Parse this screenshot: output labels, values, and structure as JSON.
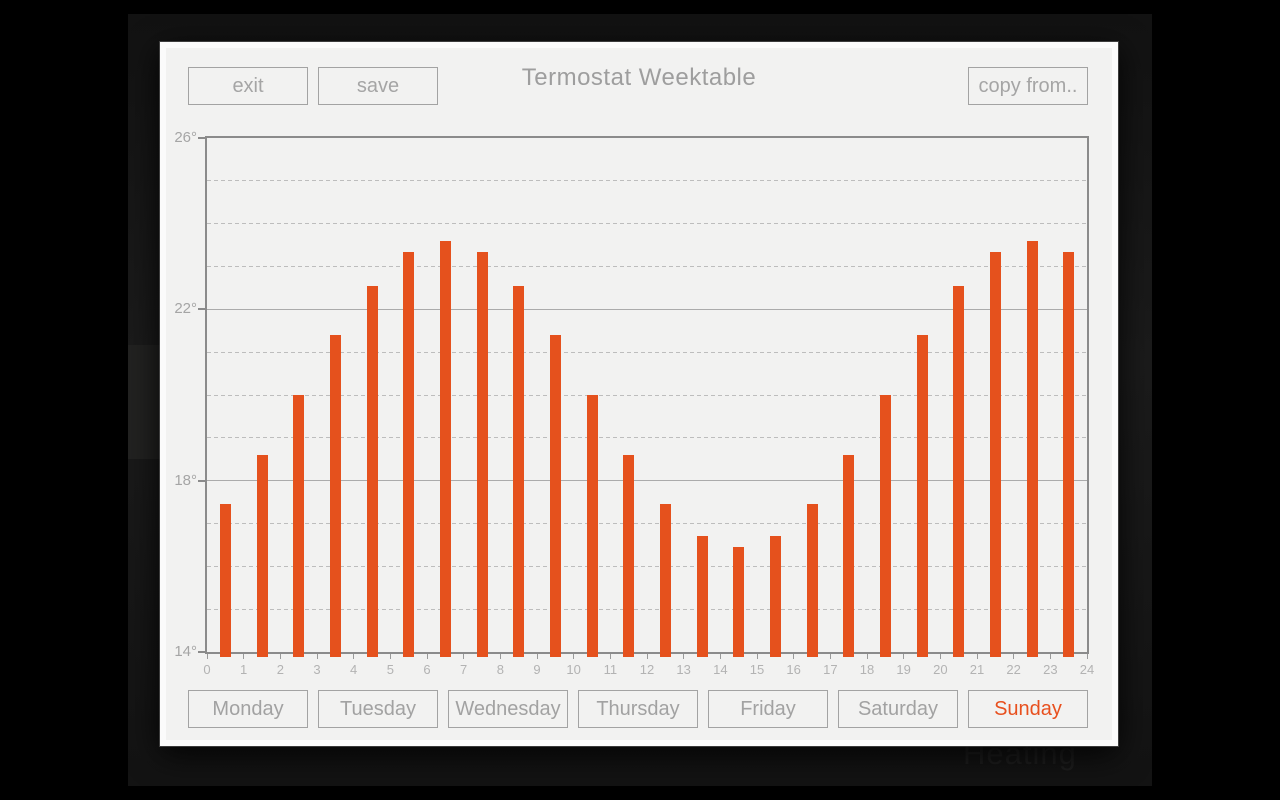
{
  "background": {
    "app_label": "Heating"
  },
  "header": {
    "exit_label": "exit",
    "save_label": "save",
    "title": "Termostat Weektable",
    "copy_from_label": "copy from.."
  },
  "days": {
    "items": [
      {
        "label": "Monday",
        "active": false
      },
      {
        "label": "Tuesday",
        "active": false
      },
      {
        "label": "Wednesday",
        "active": false
      },
      {
        "label": "Thursday",
        "active": false
      },
      {
        "label": "Friday",
        "active": false
      },
      {
        "label": "Saturday",
        "active": false
      },
      {
        "label": "Sunday",
        "active": true
      }
    ]
  },
  "chart_data": {
    "type": "bar",
    "title": "",
    "xlabel": "",
    "ylabel": "",
    "hours": [
      0,
      1,
      2,
      3,
      4,
      5,
      6,
      7,
      8,
      9,
      10,
      11,
      12,
      13,
      14,
      15,
      16,
      17,
      18,
      19,
      20,
      21,
      22,
      23
    ],
    "values": [
      17.45,
      18.6,
      20.0,
      21.4,
      22.55,
      23.35,
      23.6,
      23.35,
      22.55,
      21.4,
      20.0,
      18.6,
      17.45,
      16.7,
      16.45,
      16.7,
      17.45,
      18.6,
      20.0,
      21.4,
      22.55,
      23.35,
      23.6,
      23.35
    ],
    "ylim": [
      14,
      26
    ],
    "y_major_ticks": [
      {
        "value": 26,
        "label": "26°"
      },
      {
        "value": 22,
        "label": "22°"
      },
      {
        "value": 18,
        "label": "18°"
      },
      {
        "value": 14,
        "label": "14°"
      }
    ],
    "solid_gridlines": [
      22,
      18
    ],
    "dashed_gridlines": [
      25,
      24,
      23,
      21,
      20,
      19,
      17,
      16,
      15
    ],
    "x_tick_labels": [
      "0",
      "1",
      "2",
      "3",
      "4",
      "5",
      "6",
      "7",
      "8",
      "9",
      "10",
      "11",
      "12",
      "13",
      "14",
      "15",
      "16",
      "17",
      "18",
      "19",
      "20",
      "21",
      "22",
      "23",
      "24"
    ],
    "grid": true,
    "legend": null
  },
  "colors": {
    "bar": "#e5511d",
    "active_day_text": "#e8501e",
    "panel_bg": "#f2f2f1",
    "muted_text": "#a2a2a2"
  }
}
